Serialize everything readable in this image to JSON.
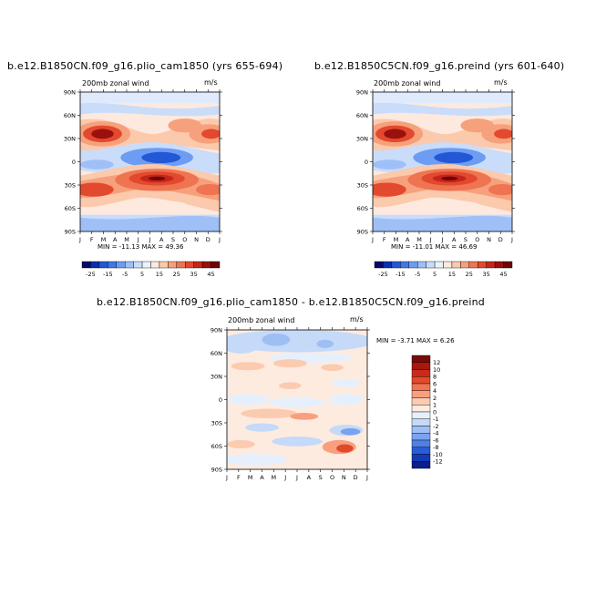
{
  "chart_data": [
    {
      "type": "heatmap",
      "title": "b.e12.B1850CN.f09_g16.plio_cam1850 (yrs 655-694)",
      "left_label": "200mb zonal wind",
      "right_label": "m/s",
      "x_tick_labels": [
        "J",
        "F",
        "M",
        "A",
        "M",
        "J",
        "J",
        "A",
        "S",
        "O",
        "N",
        "D",
        "J"
      ],
      "y_tick_labels": [
        "90N",
        "60N",
        "30N",
        "0",
        "30S",
        "60S",
        "90S"
      ],
      "ylim": [
        -90,
        90
      ],
      "stats_text": "MIN = -11.13 MAX =  49.36",
      "min": -11.13,
      "max": 49.36,
      "colorbar": {
        "orientation": "horizontal",
        "labels": [
          "-25",
          "-15",
          "-5",
          "5",
          "15",
          "25",
          "35",
          "45"
        ],
        "levels": [
          -25,
          -20,
          -15,
          -10,
          -5,
          0,
          5,
          10,
          15,
          20,
          25,
          30,
          35,
          40,
          45
        ],
        "colors": [
          "#08086b",
          "#0b2fb0",
          "#2257d6",
          "#3f78ea",
          "#6d9cf3",
          "#9fc0f7",
          "#c9dcfa",
          "#eaf2fd",
          "#fde9dd",
          "#fbc9ac",
          "#f6a07c",
          "#ef7451",
          "#e2492e",
          "#c5261a",
          "#99100e",
          "#6e0606"
        ]
      }
    },
    {
      "type": "heatmap",
      "title": "b.e12.B1850C5CN.f09_g16.preind (yrs 601-640)",
      "left_label": "200mb zonal wind",
      "right_label": "m/s",
      "x_tick_labels": [
        "J",
        "F",
        "M",
        "A",
        "M",
        "J",
        "J",
        "A",
        "S",
        "O",
        "N",
        "D",
        "J"
      ],
      "y_tick_labels": [
        "90N",
        "60N",
        "30N",
        "0",
        "30S",
        "60S",
        "90S"
      ],
      "ylim": [
        -90,
        90
      ],
      "stats_text": "MIN = -11.01 MAX =  46.69",
      "min": -11.01,
      "max": 46.69,
      "colorbar": {
        "orientation": "horizontal",
        "labels": [
          "-25",
          "-15",
          "-5",
          "5",
          "15",
          "25",
          "35",
          "45"
        ],
        "levels": [
          -25,
          -20,
          -15,
          -10,
          -5,
          0,
          5,
          10,
          15,
          20,
          25,
          30,
          35,
          40,
          45
        ],
        "colors": [
          "#08086b",
          "#0b2fb0",
          "#2257d6",
          "#3f78ea",
          "#6d9cf3",
          "#9fc0f7",
          "#c9dcfa",
          "#eaf2fd",
          "#fde9dd",
          "#fbc9ac",
          "#f6a07c",
          "#ef7451",
          "#e2492e",
          "#c5261a",
          "#99100e",
          "#6e0606"
        ]
      }
    },
    {
      "type": "heatmap",
      "title": "b.e12.B1850CN.f09_g16.plio_cam1850 - b.e12.B1850C5CN.f09_g16.preind",
      "left_label": "200mb zonal wind",
      "right_label": "m/s",
      "x_tick_labels": [
        "J",
        "F",
        "M",
        "A",
        "M",
        "J",
        "J",
        "A",
        "S",
        "O",
        "N",
        "D",
        "J"
      ],
      "y_tick_labels": [
        "90N",
        "60N",
        "30N",
        "0",
        "30S",
        "60S",
        "90S"
      ],
      "ylim": [
        -90,
        90
      ],
      "stats_text": "MIN =  -3.71 MAX =    6.26",
      "min": -3.71,
      "max": 6.26,
      "colorbar": {
        "orientation": "vertical",
        "labels": [
          "12",
          "10",
          "8",
          "6",
          "4",
          "2",
          "1",
          "0",
          "-1",
          "-2",
          "-4",
          "-6",
          "-8",
          "-10",
          "-12"
        ],
        "colors": [
          "#7a0a0a",
          "#a8180f",
          "#c92a19",
          "#e24a2c",
          "#f07452",
          "#f8a07d",
          "#fbcbb0",
          "#fdebe0",
          "#e6f0fd",
          "#c4daf8",
          "#9ebff4",
          "#7aa3ef",
          "#4f80e6",
          "#2a5bd8",
          "#143ab8",
          "#0a1f8a"
        ]
      }
    }
  ]
}
